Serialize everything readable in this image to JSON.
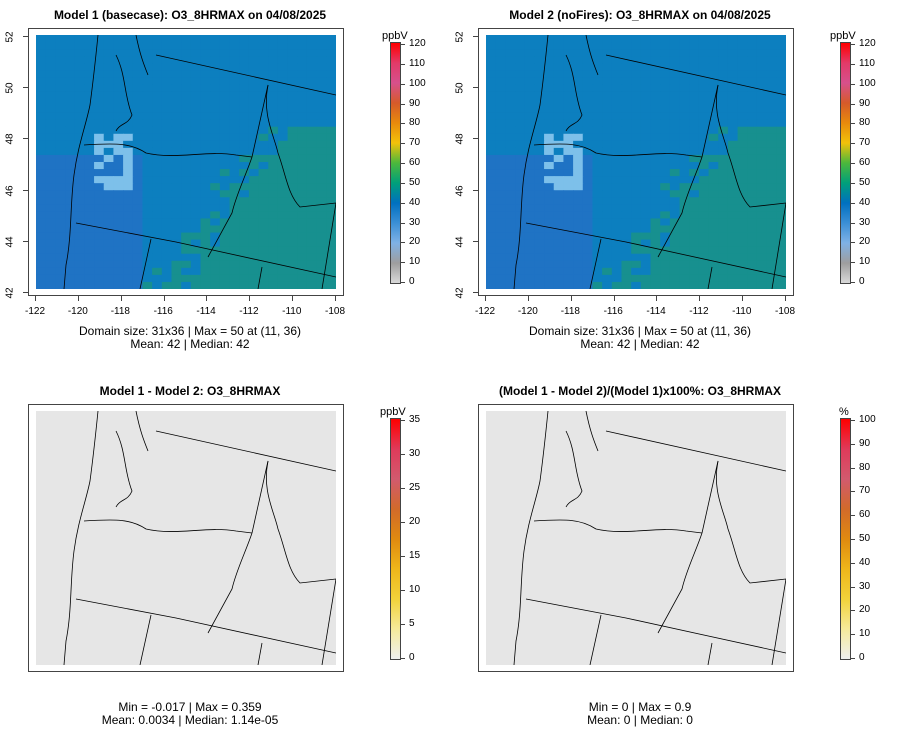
{
  "chart_data": [
    {
      "type": "heatmap",
      "title": "Model 1 (basecase): O3_8HRMAX on 04/08/2025",
      "xticks": [
        "-122",
        "-120",
        "-118",
        "-116",
        "-114",
        "-112",
        "-110",
        "-108"
      ],
      "yticks": [
        "42",
        "44",
        "46",
        "48",
        "50",
        "52"
      ],
      "xlim": [
        -122,
        -108
      ],
      "ylim": [
        42,
        52
      ],
      "legend": {
        "title": "ppbV",
        "range": [
          0,
          120
        ],
        "ticks": [
          "0",
          "10",
          "20",
          "30",
          "40",
          "50",
          "60",
          "70",
          "80",
          "90",
          "100",
          "110",
          "120"
        ],
        "colors": [
          "#d9d9d9",
          "#9e9e9e",
          "#7fb2e6",
          "#3b8fd6",
          "#0070c0",
          "#00a07a",
          "#4cb83c",
          "#f2c20a",
          "#e88a0c",
          "#d65a2a",
          "#d6508c",
          "#e33a68",
          "#ff0000"
        ]
      },
      "grid_size": "31x36",
      "max": 50,
      "max_location": "(11, 36)",
      "mean": 42,
      "median": 42,
      "stats_line1": "Domain size: 31x36 | Max = 50 at (11, 36)",
      "stats_line2": "Mean: 42 |  Median: 42"
    },
    {
      "type": "heatmap",
      "title": "Model 2 (noFires): O3_8HRMAX on 04/08/2025",
      "xticks": [
        "-122",
        "-120",
        "-118",
        "-116",
        "-114",
        "-112",
        "-110",
        "-108"
      ],
      "yticks": [
        "42",
        "44",
        "46",
        "48",
        "50",
        "52"
      ],
      "xlim": [
        -122,
        -108
      ],
      "ylim": [
        42,
        52
      ],
      "legend": {
        "title": "ppbV",
        "range": [
          0,
          120
        ],
        "ticks": [
          "0",
          "10",
          "20",
          "30",
          "40",
          "50",
          "60",
          "70",
          "80",
          "90",
          "100",
          "110",
          "120"
        ],
        "colors": [
          "#d9d9d9",
          "#9e9e9e",
          "#7fb2e6",
          "#3b8fd6",
          "#0070c0",
          "#00a07a",
          "#4cb83c",
          "#f2c20a",
          "#e88a0c",
          "#d65a2a",
          "#d6508c",
          "#e33a68",
          "#ff0000"
        ]
      },
      "grid_size": "31x36",
      "max": 50,
      "max_location": "(11, 36)",
      "mean": 42,
      "median": 42,
      "stats_line1": "Domain size: 31x36 | Max = 50 at (11, 36)",
      "stats_line2": "Mean: 42 |  Median: 42"
    },
    {
      "type": "heatmap",
      "title": "Model 1 - Model 2: O3_8HRMAX",
      "legend": {
        "title": "ppbV",
        "range": [
          0,
          35
        ],
        "ticks": [
          "0",
          "5",
          "10",
          "15",
          "20",
          "25",
          "30",
          "35"
        ],
        "colors": [
          "#f0f0f0",
          "#f5ea9a",
          "#f2d23a",
          "#eeb61a",
          "#e08a10",
          "#d26a2a",
          "#d25a6e",
          "#e03a5a",
          "#ff0000"
        ]
      },
      "min": -0.017,
      "max": 0.359,
      "mean": 0.0034,
      "median": 1.14e-05,
      "stats_line1": "Min = -0.017 | Max = 0.359",
      "stats_line2": "Mean: 0.0034 |  Median: 1.14e-05"
    },
    {
      "type": "heatmap",
      "title": "(Model 1 - Model 2)/(Model 1)x100%: O3_8HRMAX",
      "legend": {
        "title": "%",
        "range": [
          0,
          100
        ],
        "ticks": [
          "0",
          "10",
          "20",
          "30",
          "40",
          "50",
          "60",
          "70",
          "80",
          "90",
          "100"
        ],
        "colors": [
          "#f0f0f0",
          "#f5ea9a",
          "#f2d23a",
          "#eeb61a",
          "#e08a10",
          "#d26a2a",
          "#d25a6e",
          "#e03a5a",
          "#ff0000"
        ]
      },
      "min": 0,
      "max": 0.9,
      "mean": 0,
      "median": 0,
      "stats_line1": "Min = 0 | Max = 0.9",
      "stats_line2": "Mean: 0 |  Median: 0"
    }
  ],
  "colors": {
    "field_low": "#1f73c4",
    "field_mid": "#0c7fbf",
    "field_high": "#17908f",
    "field_light": "#7dc0ea",
    "diff_field": "#e6e6e6",
    "boundary": "#000000"
  }
}
